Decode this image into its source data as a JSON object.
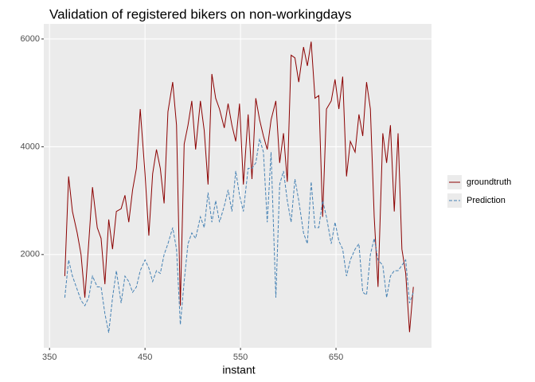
{
  "chart_data": {
    "type": "line",
    "title": "Validation of registered bikers on non-workingdays",
    "x_label": "instant",
    "x": [
      366,
      370,
      374,
      379,
      383,
      387,
      391,
      395,
      400,
      404,
      408,
      412,
      416,
      420,
      425,
      429,
      433,
      437,
      441,
      445,
      450,
      454,
      458,
      462,
      466,
      470,
      474,
      479,
      483,
      487,
      491,
      495,
      499,
      503,
      508,
      512,
      516,
      520,
      524,
      528,
      533,
      537,
      541,
      545,
      549,
      553,
      558,
      562,
      566,
      570,
      574,
      578,
      582,
      587,
      591,
      595,
      599,
      603,
      607,
      611,
      616,
      620,
      624,
      628,
      632,
      636,
      640,
      645,
      649,
      653,
      657,
      661,
      665,
      670,
      674,
      678,
      682,
      686,
      690,
      694,
      699,
      703,
      707,
      711,
      715,
      719,
      723,
      727,
      731
    ],
    "series": [
      {
        "name": "groundtruth",
        "color": "#8b0000",
        "dashed": false,
        "values": [
          1600,
          3450,
          2800,
          2400,
          2000,
          1200,
          2200,
          3250,
          2500,
          2300,
          1450,
          2650,
          2100,
          2800,
          2850,
          3100,
          2600,
          3200,
          3600,
          4700,
          3500,
          2350,
          3500,
          3950,
          3600,
          2950,
          4650,
          5200,
          4400,
          1050,
          4050,
          4400,
          4850,
          3950,
          4850,
          4300,
          3300,
          5350,
          4900,
          4700,
          4350,
          4800,
          4400,
          4100,
          4800,
          3300,
          4600,
          3400,
          4900,
          4500,
          4200,
          3950,
          4500,
          4850,
          3700,
          4250,
          3350,
          5700,
          5650,
          5200,
          5850,
          5500,
          5950,
          4900,
          4950,
          2700,
          4700,
          4850,
          5250,
          4700,
          5300,
          3450,
          4100,
          3900,
          4600,
          4200,
          5200,
          4700,
          2700,
          1400,
          4250,
          3700,
          4400,
          2800,
          4250,
          2100,
          1650,
          560,
          1400
        ]
      },
      {
        "name": "Prediction",
        "color": "#4682b4",
        "dashed": true,
        "values": [
          1200,
          1900,
          1600,
          1350,
          1150,
          1050,
          1200,
          1600,
          1400,
          1400,
          900,
          550,
          1200,
          1700,
          1100,
          1600,
          1500,
          1300,
          1400,
          1700,
          1900,
          1750,
          1500,
          1700,
          1650,
          2000,
          2200,
          2500,
          2100,
          700,
          1500,
          2200,
          2400,
          2300,
          2700,
          2500,
          3150,
          2600,
          3000,
          2600,
          2900,
          3200,
          2800,
          3550,
          3100,
          2800,
          3600,
          3600,
          3700,
          4150,
          3900,
          2600,
          3900,
          1200,
          3300,
          3550,
          3000,
          2600,
          3400,
          3000,
          2400,
          2200,
          3350,
          2500,
          2500,
          3000,
          2700,
          2200,
          2600,
          2250,
          2100,
          1600,
          1900,
          2100,
          2200,
          1300,
          1250,
          2000,
          2300,
          1900,
          1800,
          1200,
          1600,
          1700,
          1700,
          1800,
          1900,
          1100,
          1300
        ]
      }
    ],
    "xlim": [
      344,
      750
    ],
    "ylim": [
      270,
      6280
    ],
    "xticks": [
      350,
      450,
      550,
      650
    ],
    "yticks": [
      2000,
      4000,
      6000
    ],
    "grid": true,
    "legend_position": "right"
  }
}
